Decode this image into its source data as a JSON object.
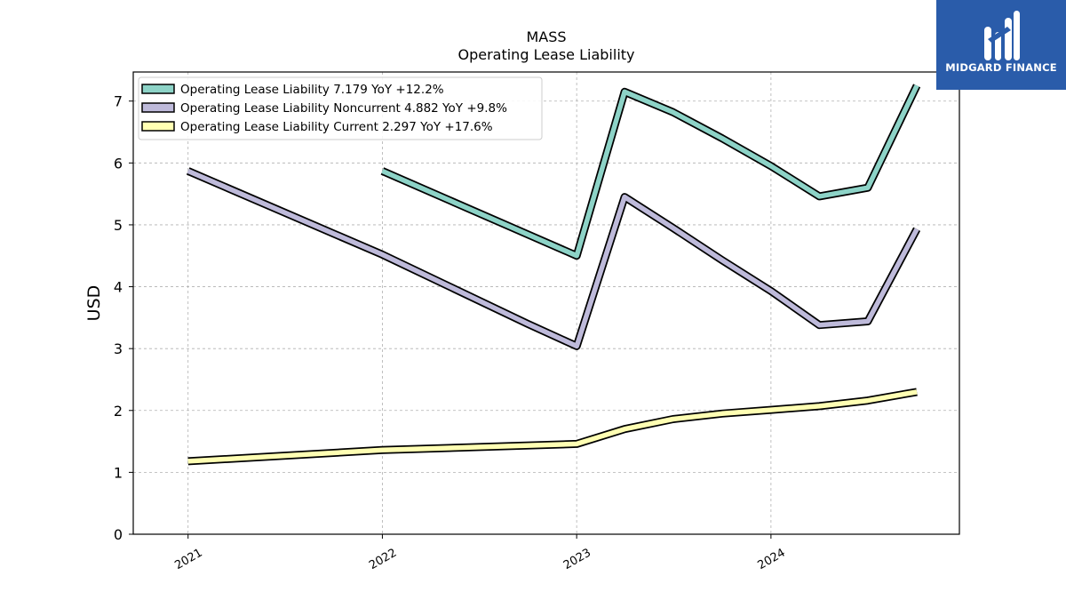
{
  "brand": {
    "name": "MIDGARD FINANCE",
    "color": "#2a5caa"
  },
  "chart_data": {
    "type": "line",
    "title": "MASS",
    "subtitle": "Operating Lease Liability",
    "xlabel": "",
    "ylabel": "USD",
    "x_ticks": [
      "2021",
      "2022",
      "2023",
      "2024"
    ],
    "y_ticks": [
      0,
      1,
      2,
      3,
      4,
      5,
      6,
      7
    ],
    "ylim": [
      0,
      7.47
    ],
    "xlim": [
      "2020-09-20",
      "2024-12-20"
    ],
    "grid": true,
    "legend_position": "top-left",
    "series": [
      {
        "name": "Operating Lease Liability  7.179 YoY +12.2%",
        "color": "#8dd3c7",
        "points": [
          {
            "x": "2022-01-01",
            "y": 5.87
          },
          {
            "x": "2023-01-01",
            "y": 4.5
          },
          {
            "x": "2023-04-01",
            "y": 7.15
          },
          {
            "x": "2023-07-01",
            "y": 6.82
          },
          {
            "x": "2023-10-01",
            "y": 6.4
          },
          {
            "x": "2024-01-01",
            "y": 5.95
          },
          {
            "x": "2024-04-01",
            "y": 5.46
          },
          {
            "x": "2024-07-01",
            "y": 5.6
          },
          {
            "x": "2024-10-01",
            "y": 7.25
          }
        ]
      },
      {
        "name": "Operating Lease Liability Noncurrent  4.882 YoY +9.8%",
        "color": "#bebada",
        "points": [
          {
            "x": "2021-01-01",
            "y": 5.87
          },
          {
            "x": "2022-01-01",
            "y": 4.52
          },
          {
            "x": "2022-10-01",
            "y": 3.4
          },
          {
            "x": "2023-01-01",
            "y": 3.04
          },
          {
            "x": "2023-04-01",
            "y": 5.45
          },
          {
            "x": "2023-07-01",
            "y": 4.95
          },
          {
            "x": "2023-10-01",
            "y": 4.43
          },
          {
            "x": "2024-01-01",
            "y": 3.93
          },
          {
            "x": "2024-04-01",
            "y": 3.38
          },
          {
            "x": "2024-07-01",
            "y": 3.44
          },
          {
            "x": "2024-10-01",
            "y": 4.93
          }
        ]
      },
      {
        "name": "Operating Lease Liability Current  2.297 YoY +17.6%",
        "color": "#ffffb3",
        "points": [
          {
            "x": "2021-01-01",
            "y": 1.18
          },
          {
            "x": "2022-01-01",
            "y": 1.36
          },
          {
            "x": "2023-01-01",
            "y": 1.46
          },
          {
            "x": "2023-04-01",
            "y": 1.7
          },
          {
            "x": "2023-07-01",
            "y": 1.86
          },
          {
            "x": "2023-10-01",
            "y": 1.95
          },
          {
            "x": "2024-01-01",
            "y": 2.01
          },
          {
            "x": "2024-04-01",
            "y": 2.07
          },
          {
            "x": "2024-07-01",
            "y": 2.16
          },
          {
            "x": "2024-10-01",
            "y": 2.3
          }
        ]
      }
    ]
  }
}
